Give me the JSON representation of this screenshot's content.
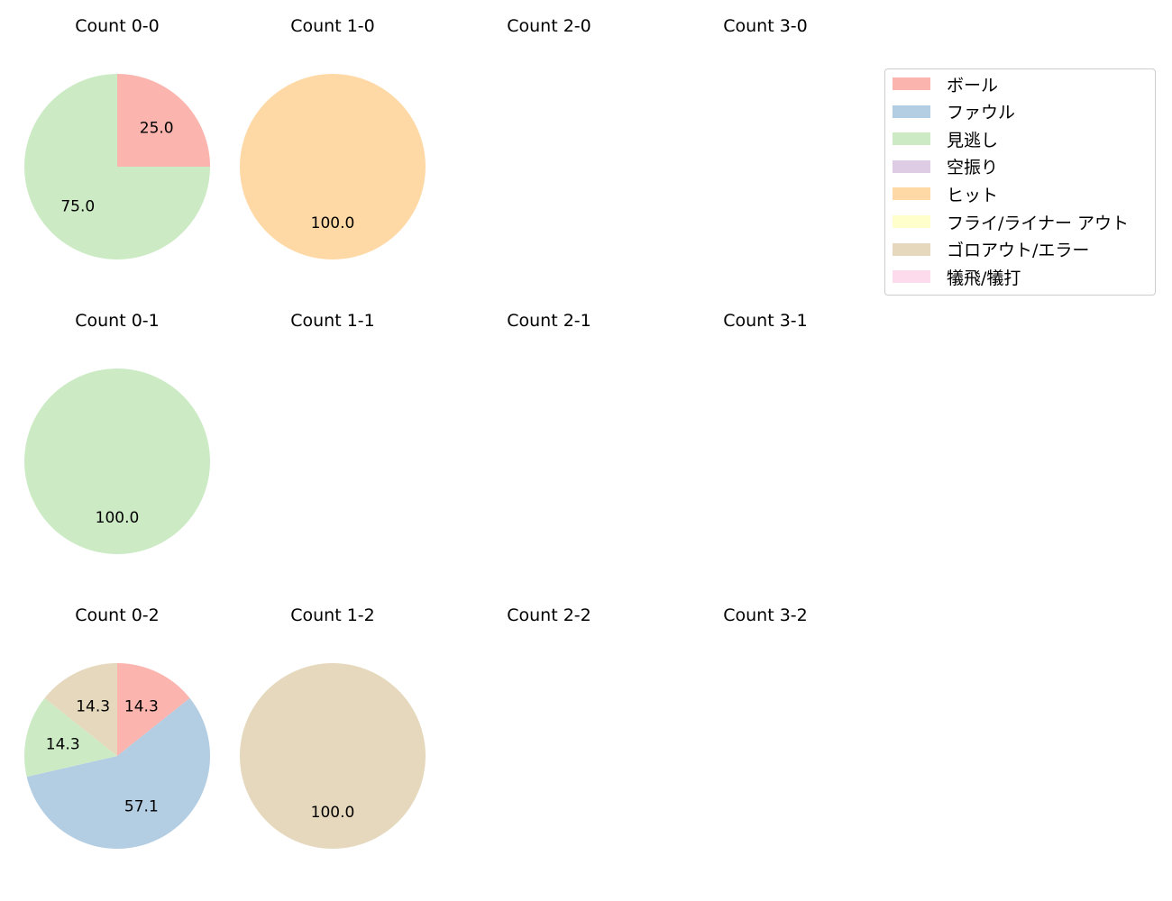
{
  "chart_data": {
    "type": "pie",
    "categories": [
      "ボール",
      "ファウル",
      "見逃し",
      "空振り",
      "ヒット",
      "フライ/ライナー アウト",
      "ゴロアウト/エラー",
      "犠飛/犠打"
    ],
    "colors": [
      "#fbb4ae",
      "#b3cde3",
      "#ccebc5",
      "#decbe4",
      "#fed9a6",
      "#ffffcc",
      "#e5d8bd",
      "#fddaec"
    ],
    "legend_placement": "top-right",
    "subplots": [
      {
        "title": "Count 0-0",
        "values": {
          "ボール": 25.0,
          "見逃し": 75.0
        }
      },
      {
        "title": "Count 1-0",
        "values": {
          "ヒット": 100.0
        }
      },
      {
        "title": "Count 2-0",
        "values": {}
      },
      {
        "title": "Count 3-0",
        "values": {}
      },
      {
        "title": "Count 0-1",
        "values": {
          "見逃し": 100.0
        }
      },
      {
        "title": "Count 1-1",
        "values": {}
      },
      {
        "title": "Count 2-1",
        "values": {}
      },
      {
        "title": "Count 3-1",
        "values": {}
      },
      {
        "title": "Count 0-2",
        "values": {
          "ボール": 14.3,
          "ファウル": 57.1,
          "見逃し": 14.3,
          "ゴロアウト/エラー": 14.3
        }
      },
      {
        "title": "Count 1-2",
        "values": {
          "ゴロアウト/エラー": 100.0
        }
      },
      {
        "title": "Count 2-2",
        "values": {}
      },
      {
        "title": "Count 3-2",
        "values": {}
      }
    ]
  }
}
